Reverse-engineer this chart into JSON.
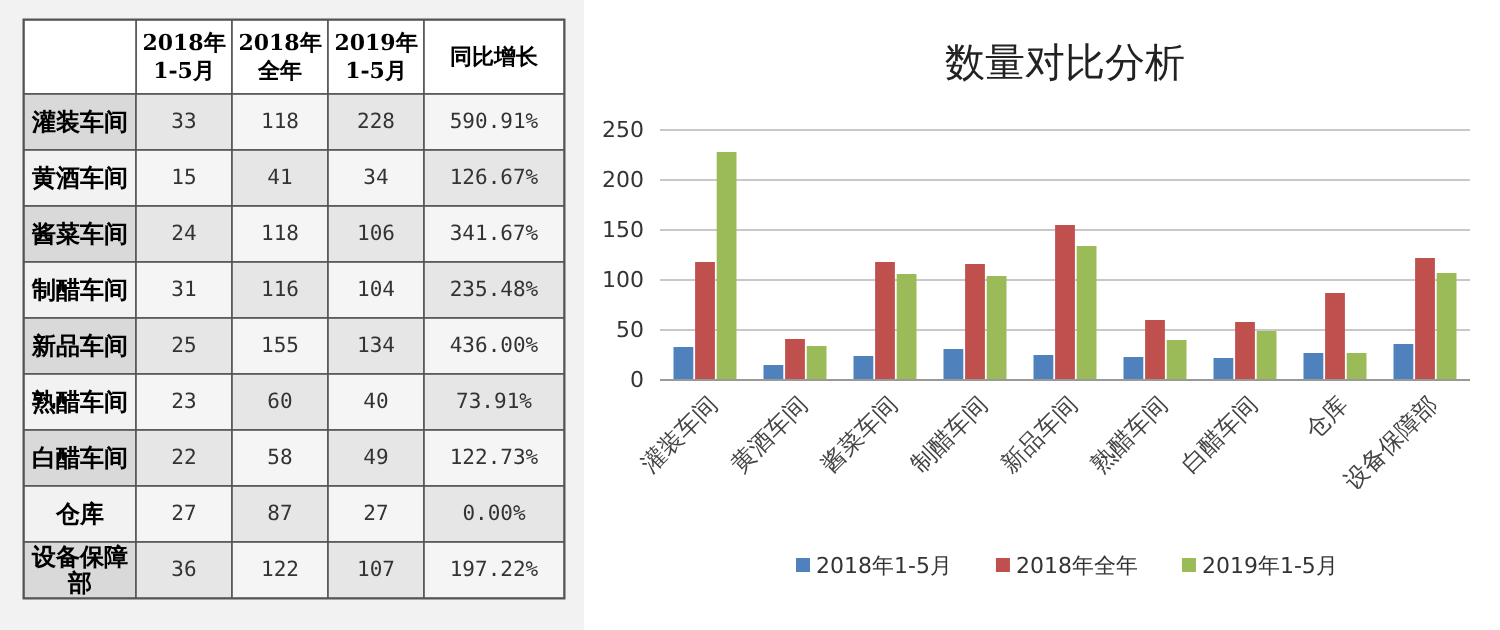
{
  "chart_data": [
    {
      "type": "other",
      "categories": [
        "灌装车间",
        "黄酒车间",
        "酱菜车间",
        "制醋车间",
        "新品车间",
        "熟醋车间",
        "白醋车间",
        "仓库",
        "设备保障部"
      ],
      "data_labels": true,
      "series": [
        {
          "name": "2018年1-5月",
          "colors": [
            "#e6e6e6",
            "#f5f5f5",
            "#e6e6e6",
            "#f5f5f5",
            "#e6e6e6",
            "#f5f5f5",
            "#e6e6e6",
            "#f5f5f5",
            "#e6e6e6"
          ],
          "values": [
            33,
            15,
            24,
            31,
            25,
            23,
            22,
            27,
            36
          ]
        },
        {
          "name": "2018年全年",
          "colors": [
            "#f5f5f5",
            "#e6e6e6",
            "#f5f5f5",
            "#e6e6e6",
            "#f5f5f5",
            "#e6e6e6",
            "#f5f5f5",
            "#e6e6e6",
            "#f5f5f5"
          ],
          "values": [
            118,
            41,
            118,
            116,
            155,
            60,
            58,
            87,
            122
          ]
        },
        {
          "name": "2019年1-5月",
          "colors": [
            "#e6e6e6",
            "#f5f5f5",
            "#e6e6e6",
            "#f5f5f5",
            "#e6e6e6",
            "#f5f5f5",
            "#e6e6e6",
            "#f5f5f5",
            "#e6e6e6"
          ],
          "values": [
            228,
            34,
            106,
            104,
            134,
            40,
            49,
            27,
            107
          ]
        },
        {
          "name": "同比增长",
          "colors": [
            "#f5f5f5",
            "#e6e6e6",
            "#f5f5f5",
            "#e6e6e6",
            "#f5f5f5",
            "#e6e6e6",
            "#f5f5f5",
            "#e6e6e6",
            "#f5f5f5"
          ],
          "values": [
            590.91,
            126.67,
            341.67,
            235.48,
            436.0,
            73.91,
            122.73,
            0.0,
            197.22
          ],
          "value_labels": [
            "590.91%",
            "126.67%",
            "341.67%",
            "235.48%",
            "436.00%",
            "73.91%",
            "122.73%",
            "0.00%",
            "197.22%"
          ]
        }
      ]
    },
    {
      "type": "bar",
      "title": "数量对比分析",
      "categories": [
        "灌装车间",
        "黄酒车间",
        "酱菜车间",
        "制醋车间",
        "新品车间",
        "熟醋车间",
        "白醋车间",
        "仓库",
        "设备保障部"
      ],
      "ylim": [
        0,
        250
      ],
      "yticks": [
        0,
        50,
        100,
        150,
        200,
        250
      ],
      "grid": "y",
      "legend": "bottom",
      "series": [
        {
          "name": "2018年1-5月",
          "color": "#4f81bd",
          "values": [
            33,
            15,
            24,
            31,
            25,
            23,
            22,
            27,
            36
          ]
        },
        {
          "name": "2018年全年",
          "color": "#c0504d",
          "values": [
            118,
            41,
            118,
            116,
            155,
            60,
            58,
            87,
            122
          ]
        },
        {
          "name": "2019年1-5月",
          "color": "#9bbb59",
          "values": [
            228,
            34,
            106,
            104,
            134,
            40,
            49,
            27,
            107
          ]
        }
      ]
    }
  ]
}
